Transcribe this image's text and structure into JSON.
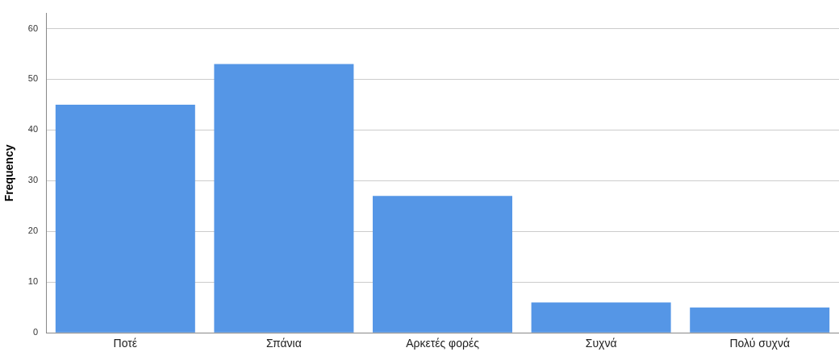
{
  "chart_data": {
    "type": "bar",
    "ylabel": "Frequency",
    "categories": [
      "Ποτέ",
      "Σπάνια",
      "Αρκετές φορές",
      "Συχνά",
      "Πολύ συχνά"
    ],
    "values": [
      45,
      53,
      27,
      6,
      5
    ],
    "color": "#5596e6",
    "ylim": [
      0,
      63
    ],
    "yticks": [
      0,
      10,
      20,
      30,
      40,
      50,
      60
    ],
    "grid": "y"
  }
}
